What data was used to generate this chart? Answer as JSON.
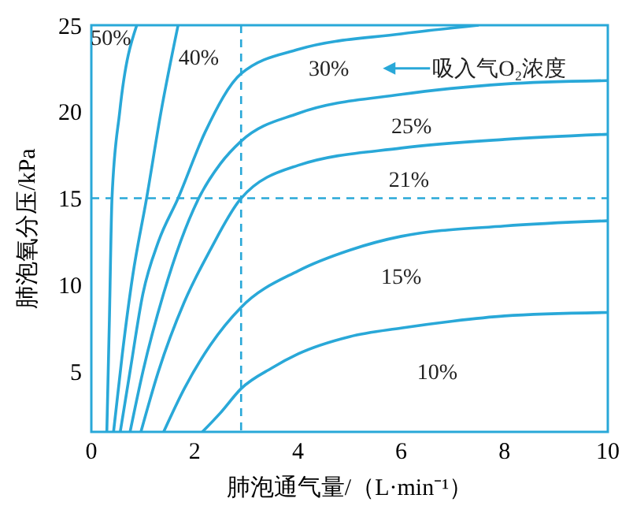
{
  "chart_data": {
    "type": "line",
    "xlabel": "肺泡通气量/（L·min⁻¹）",
    "ylabel": "肺泡氧分压/kPa",
    "xlim": [
      0,
      10
    ],
    "ylim": [
      1.5,
      25
    ],
    "xticks": [
      0,
      2,
      4,
      6,
      8,
      10
    ],
    "yticks": [
      5,
      10,
      15,
      20,
      25
    ],
    "grid": false,
    "marker": "none",
    "line_style": "solid",
    "series": [
      {
        "color": "#29a8d8",
        "x": [
          0.3,
          0.35,
          0.4,
          0.55,
          0.88
        ],
        "values": [
          1.5,
          8,
          15,
          20,
          25
        ]
      },
      {
        "color": "#29a8d8",
        "x": [
          0.43,
          0.6,
          0.8,
          1.07,
          1.35,
          1.68
        ],
        "values": [
          1.5,
          6,
          10.5,
          15,
          20,
          25
        ]
      },
      {
        "color": "#29a8d8",
        "x": [
          0.56,
          0.75,
          1,
          1.3,
          1.68,
          2.2,
          2.9,
          4,
          6,
          7.5
        ],
        "values": [
          1.5,
          5,
          9.5,
          12.5,
          15,
          18.8,
          22.2,
          23.6,
          24.5,
          25
        ]
      },
      {
        "color": "#29a8d8",
        "x": [
          0.75,
          1,
          1.4,
          2.08,
          2.5,
          2.9,
          4,
          6,
          8,
          10
        ],
        "values": [
          1.5,
          5,
          9.5,
          15,
          17,
          18.3,
          19.9,
          21,
          21.6,
          21.8
        ]
      },
      {
        "color": "#29a8d8",
        "x": [
          0.96,
          1.3,
          1.8,
          2.3,
          2.9,
          4,
          6,
          8,
          10
        ],
        "values": [
          1.5,
          5,
          9,
          12,
          15,
          16.9,
          17.9,
          18.4,
          18.7
        ]
      },
      {
        "color": "#29a8d8",
        "x": [
          1.4,
          1.8,
          2.3,
          2.9,
          4,
          5,
          6,
          8,
          10
        ],
        "values": [
          1.5,
          4,
          6.5,
          8.7,
          10.8,
          12,
          12.8,
          13.4,
          13.7
        ]
      },
      {
        "color": "#29a8d8",
        "x": [
          2.15,
          2.5,
          2.9,
          3.5,
          4,
          5,
          6,
          7,
          8,
          10
        ],
        "values": [
          1.5,
          2.6,
          4,
          5.2,
          6,
          7,
          7.5,
          7.9,
          8.2,
          8.4
        ]
      }
    ],
    "ref_lines": [
      {
        "axis": "x",
        "value": 2.9,
        "color": "#29a8d8",
        "line_style": "dashed"
      },
      {
        "axis": "y",
        "value": 15,
        "color": "#29a8d8",
        "line_style": "dashed"
      }
    ],
    "annotations": [
      "50%",
      "40%",
      "30%",
      "吸入气O₂浓度",
      "25%",
      "21%",
      "15%",
      "10%"
    ]
  }
}
